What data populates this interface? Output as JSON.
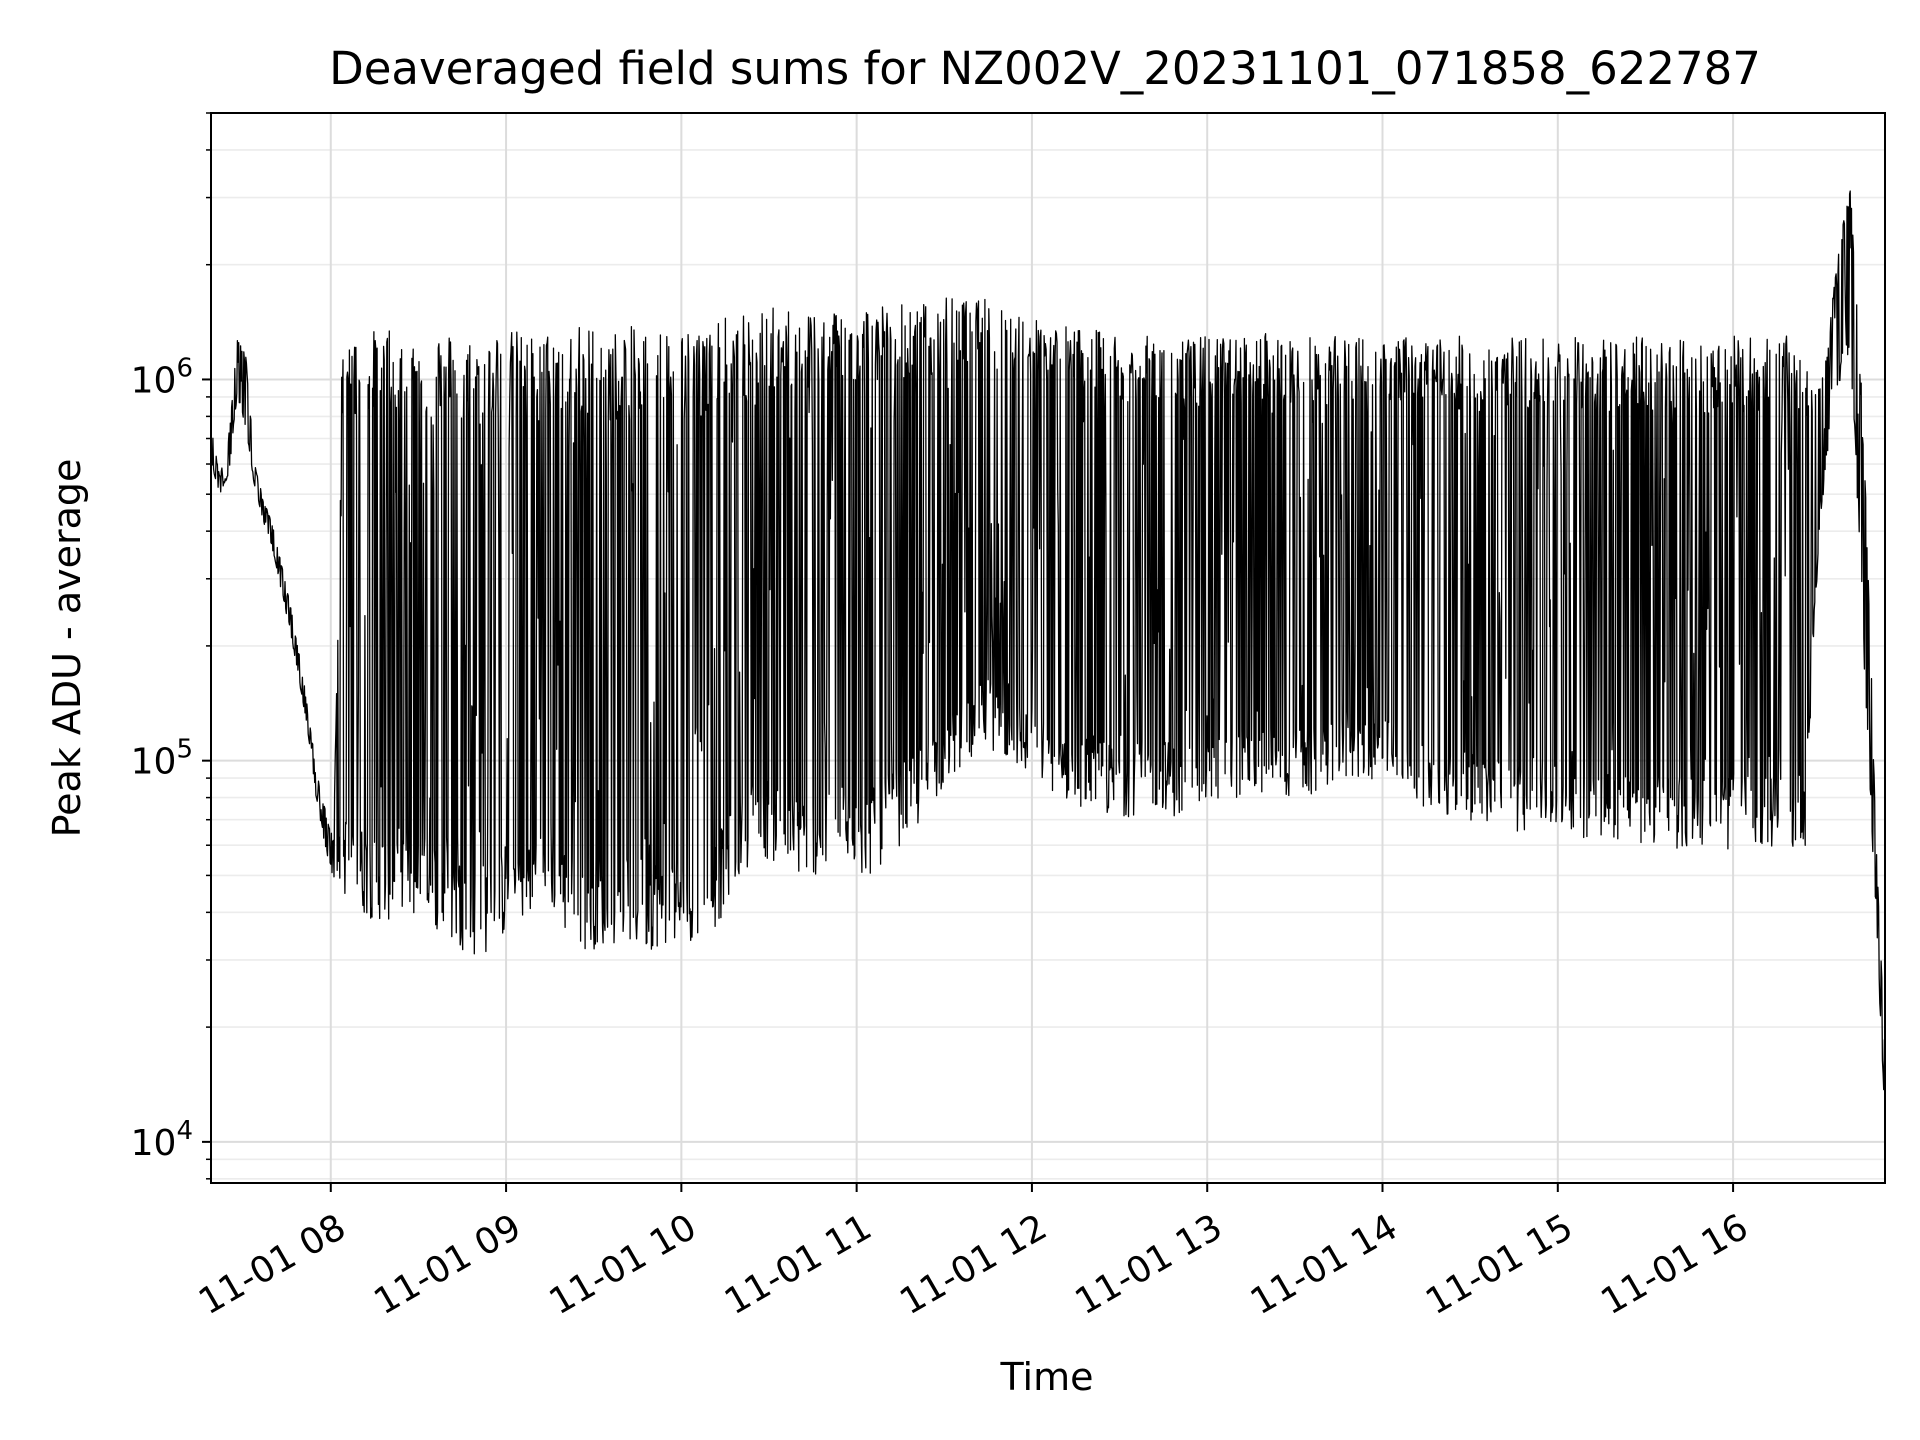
{
  "chart_data": {
    "type": "line",
    "title": "Deaveraged field sums for NZ002V_20231101_071858_622787",
    "xlabel": "Time",
    "ylabel": "Peak ADU - average",
    "yscale": "log",
    "xlim": [
      "2023-11-01 07:19",
      "2023-11-01 16:52"
    ],
    "ylim": [
      7800,
      5000000
    ],
    "grid": true,
    "legend": "none",
    "line_color": "#000000",
    "x_ticks": [
      {
        "value": "2023-11-01 08:00",
        "label": "11-01 08"
      },
      {
        "value": "2023-11-01 09:00",
        "label": "11-01 09"
      },
      {
        "value": "2023-11-01 10:00",
        "label": "11-01 10"
      },
      {
        "value": "2023-11-01 11:00",
        "label": "11-01 11"
      },
      {
        "value": "2023-11-01 12:00",
        "label": "11-01 12"
      },
      {
        "value": "2023-11-01 13:00",
        "label": "11-01 13"
      },
      {
        "value": "2023-11-01 14:00",
        "label": "11-01 14"
      },
      {
        "value": "2023-11-01 15:00",
        "label": "11-01 15"
      },
      {
        "value": "2023-11-01 16:00",
        "label": "11-01 16"
      }
    ],
    "y_ticks": [
      {
        "value": 10000,
        "base": "10",
        "exp": "4"
      },
      {
        "value": 100000,
        "base": "10",
        "exp": "5"
      },
      {
        "value": 1000000,
        "base": "10",
        "exp": "6"
      }
    ],
    "series": [
      {
        "name": "",
        "x": [
          "07:19",
          "07:22",
          "07:25",
          "07:28",
          "07:31",
          "07:34",
          "07:37",
          "07:40",
          "07:43",
          "07:46",
          "07:49",
          "07:52",
          "07:55",
          "07:58",
          "08:01",
          "08:04",
          "08:07",
          "08:10",
          "08:15",
          "08:20",
          "08:25",
          "08:30",
          "08:35",
          "08:40",
          "08:45",
          "08:50",
          "08:55",
          "09:00",
          "09:05",
          "09:10",
          "09:15",
          "09:20",
          "09:25",
          "09:30",
          "09:35",
          "09:40",
          "09:45",
          "09:50",
          "09:55",
          "10:00",
          "10:05",
          "10:10",
          "10:15",
          "10:20",
          "10:25",
          "10:30",
          "10:35",
          "10:40",
          "10:45",
          "10:50",
          "10:55",
          "11:00",
          "11:05",
          "11:10",
          "11:15",
          "11:20",
          "11:25",
          "11:30",
          "11:35",
          "11:40",
          "11:45",
          "11:50",
          "11:55",
          "12:00",
          "12:05",
          "12:10",
          "12:15",
          "12:20",
          "12:25",
          "12:30",
          "12:35",
          "12:40",
          "12:45",
          "12:50",
          "12:55",
          "13:00",
          "13:05",
          "13:10",
          "13:15",
          "13:20",
          "13:25",
          "13:30",
          "13:35",
          "13:40",
          "13:45",
          "13:50",
          "13:55",
          "14:00",
          "14:05",
          "14:10",
          "14:15",
          "14:20",
          "14:25",
          "14:30",
          "14:35",
          "14:40",
          "14:45",
          "14:50",
          "14:55",
          "15:00",
          "15:05",
          "15:10",
          "15:15",
          "15:20",
          "15:25",
          "15:30",
          "15:35",
          "15:40",
          "15:45",
          "15:50",
          "15:55",
          "16:00",
          "16:05",
          "16:10",
          "16:15",
          "16:20",
          "16:25",
          "16:28",
          "16:31",
          "16:34",
          "16:37",
          "16:40",
          "16:43",
          "16:46",
          "16:49",
          "16:52"
        ],
        "upper": [
          750000,
          560000,
          700000,
          1300000,
          1150000,
          600000,
          480000,
          420000,
          330000,
          260000,
          195000,
          140000,
          95000,
          75000,
          62000,
          1350000,
          1300000,
          1350000,
          1350000,
          1350000,
          1350000,
          1350000,
          1350000,
          1350000,
          1300000,
          1300000,
          1350000,
          1350000,
          1350000,
          1300000,
          1350000,
          1350000,
          1400000,
          1400000,
          1350000,
          1350000,
          1400000,
          1350000,
          1400000,
          1350000,
          1400000,
          1400000,
          1450000,
          1500000,
          1500000,
          1550000,
          1550000,
          1550000,
          1550000,
          1550000,
          1600000,
          1600000,
          1600000,
          1600000,
          1600000,
          1600000,
          1600000,
          1650000,
          1650000,
          1600000,
          1650000,
          1600000,
          1550000,
          1500000,
          1450000,
          1400000,
          1400000,
          1350000,
          1350000,
          1350000,
          1300000,
          1300000,
          1300000,
          1300000,
          1300000,
          1300000,
          1300000,
          1300000,
          1300000,
          1350000,
          1300000,
          1300000,
          1300000,
          1300000,
          1300000,
          1300000,
          1300000,
          1300000,
          1300000,
          1300000,
          1300000,
          1300000,
          1300000,
          1300000,
          1300000,
          1300000,
          1300000,
          1300000,
          1300000,
          1300000,
          1300000,
          1300000,
          1300000,
          1300000,
          1300000,
          1300000,
          1300000,
          1300000,
          1300000,
          1300000,
          1300000,
          1300000,
          1300000,
          1300000,
          1300000,
          1300000,
          1250000,
          900000,
          1100000,
          1600000,
          2500000,
          3500000,
          1400000,
          400000,
          60000,
          18000
        ],
        "lower": [
          600000,
          500000,
          560000,
          900000,
          700000,
          520000,
          420000,
          360000,
          280000,
          220000,
          165000,
          120000,
          80000,
          60000,
          48000,
          45000,
          42000,
          40000,
          38000,
          38000,
          40000,
          38000,
          36000,
          34000,
          32000,
          30000,
          32000,
          35000,
          38000,
          40000,
          42000,
          35000,
          32000,
          32000,
          33000,
          33000,
          32000,
          32000,
          33000,
          33000,
          33000,
          35000,
          40000,
          50000,
          55000,
          55000,
          52000,
          50000,
          50000,
          50000,
          52000,
          50000,
          50000,
          55000,
          60000,
          65000,
          75000,
          85000,
          95000,
          100000,
          110000,
          100000,
          95000,
          90000,
          85000,
          80000,
          75000,
          75000,
          72000,
          70000,
          72000,
          75000,
          75000,
          70000,
          72000,
          75000,
          80000,
          80000,
          80000,
          80000,
          80000,
          80000,
          80000,
          80000,
          85000,
          90000,
          90000,
          85000,
          85000,
          80000,
          75000,
          70000,
          68000,
          68000,
          68000,
          65000,
          65000,
          65000,
          65000,
          65000,
          65000,
          62000,
          62000,
          62000,
          60000,
          60000,
          58000,
          58000,
          58000,
          58000,
          58000,
          58000,
          58000,
          58000,
          58000,
          58000,
          60000,
          250000,
          500000,
          800000,
          1000000,
          1200000,
          400000,
          100000,
          40000,
          10500
        ]
      }
    ]
  }
}
